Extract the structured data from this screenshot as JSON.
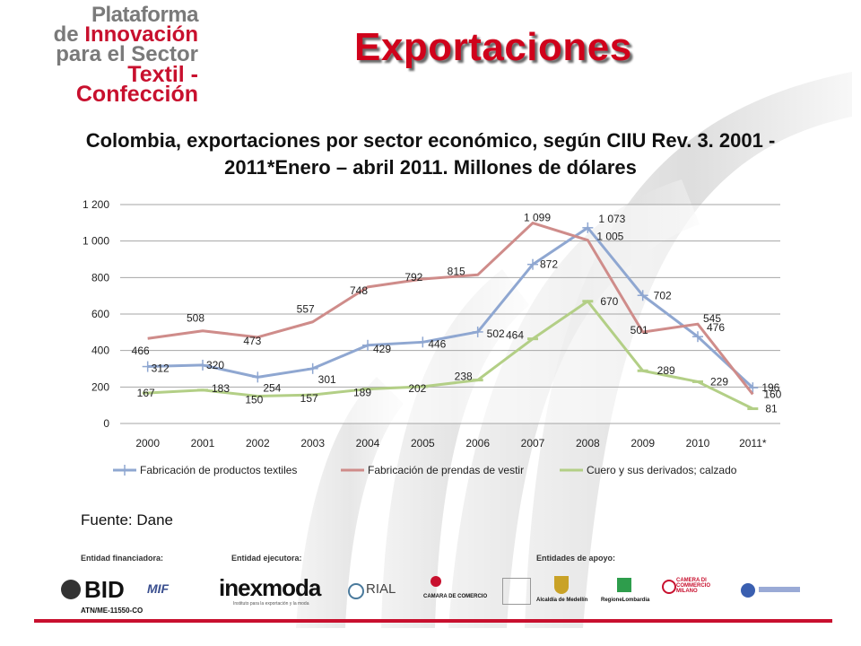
{
  "logo": {
    "line1": "Plataforma",
    "line2_a": "de ",
    "line2_b": "Innovación",
    "line3": "para el Sector",
    "line4": "Textil - Confección"
  },
  "page_title": "Exportaciones",
  "chart_title_line1": "Colombia, exportaciones por sector económico, según CIIU Rev. 3. 2001 -",
  "chart_title_line2": "2011*Enero – abril  2011. Millones de dólares",
  "source": "Fuente: Dane",
  "footer": {
    "financing_label": "Entidad financiadora:",
    "executing_label": "Entidad ejecutora:",
    "support_label": "Entidades de apoyo:",
    "bid": "BID",
    "mif": "MIF",
    "atn": "ATN/ME-11550-CO",
    "inexmoda": "inexmoda",
    "inexmoda_sub": "Instituto para la exportación y la moda",
    "rial": "RIAL",
    "camara": "CAMARA DE COMERCIO",
    "alcaldia": "Alcaldía de Medellín",
    "lombardia": "RegioneLombardia",
    "camera_milano": "CAMERA DI COMMERCIO MILANO"
  },
  "colors": {
    "textiles": "#8fa7d1",
    "prendas": "#cf8c8a",
    "cuero": "#b3cf86",
    "title_red": "#d0021b",
    "accent_red": "#c8102e"
  },
  "chart_data": {
    "type": "line",
    "categories": [
      "2000",
      "2001",
      "2002",
      "2003",
      "2004",
      "2005",
      "2006",
      "2007",
      "2008",
      "2009",
      "2010",
      "2011*"
    ],
    "ylim": [
      0,
      1200
    ],
    "yticks": [
      "0",
      "200",
      "400",
      "600",
      "800",
      "1 000",
      "1 200"
    ],
    "ytick_values": [
      0,
      200,
      400,
      600,
      800,
      1000,
      1200
    ],
    "grid": true,
    "legend_position": "bottom",
    "series": [
      {
        "name": "Fabricación de productos textiles",
        "values": [
          312,
          320,
          254,
          301,
          429,
          446,
          502,
          872,
          1073,
          702,
          476,
          196
        ],
        "labels": [
          "312",
          "320",
          "254",
          "301",
          "429",
          "446",
          "502",
          "872",
          "1 073",
          "702",
          "476",
          "196"
        ],
        "marker": "plus"
      },
      {
        "name": "Fabricación de prendas de vestir",
        "values": [
          466,
          508,
          473,
          557,
          748,
          792,
          815,
          1099,
          1005,
          501,
          545,
          160
        ],
        "labels": [
          "466",
          "508",
          "473",
          "557",
          "748",
          "792",
          "815",
          "1 099",
          "1 005",
          "501",
          "545",
          "160"
        ],
        "marker": "none"
      },
      {
        "name": "Cuero y sus derivados; calzado",
        "values": [
          167,
          183,
          150,
          157,
          189,
          202,
          238,
          464,
          670,
          289,
          229,
          81
        ],
        "labels": [
          "167",
          "183",
          "150",
          "157",
          "189",
          "202",
          "238",
          "464",
          "670",
          "289",
          "229",
          "81"
        ],
        "marker": "dash"
      }
    ]
  }
}
